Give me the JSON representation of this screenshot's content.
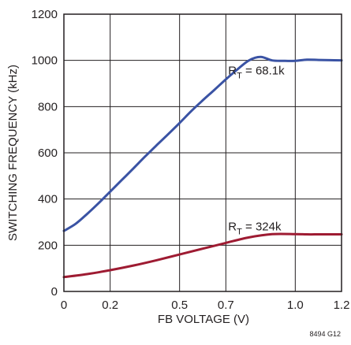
{
  "chart_data": {
    "type": "line",
    "title": "",
    "xlabel": "FB VOLTAGE (V)",
    "ylabel": "SWITCHING FREQUENCY (kHz)",
    "xlim": [
      0,
      1.2
    ],
    "ylim": [
      0,
      1200
    ],
    "x_ticks": [
      0,
      0.2,
      0.5,
      0.7,
      1.0,
      1.2
    ],
    "x_tick_labels": [
      "0",
      "0.2",
      "0.5",
      "0.7",
      "1.0",
      "1.2"
    ],
    "y_ticks": [
      0,
      200,
      400,
      600,
      800,
      1000,
      1200
    ],
    "y_tick_labels": [
      "0",
      "200",
      "400",
      "600",
      "800",
      "1000",
      "1200"
    ],
    "grid": true,
    "legend": "none",
    "series": [
      {
        "color": "#3a53a4",
        "x": [
          0,
          0.05,
          0.1,
          0.15,
          0.2,
          0.25,
          0.3,
          0.35,
          0.4,
          0.45,
          0.5,
          0.55,
          0.6,
          0.65,
          0.7,
          0.75,
          0.8,
          0.85,
          0.9,
          0.95,
          1.0,
          1.05,
          1.1,
          1.15,
          1.2
        ],
        "y": [
          262,
          292,
          335,
          382,
          432,
          482,
          532,
          583,
          632,
          680,
          729,
          780,
          827,
          872,
          918,
          961,
          1000,
          1015,
          1000,
          998,
          998,
          1003,
          1002,
          1001,
          1000
        ]
      },
      {
        "color": "#9e1b32",
        "x": [
          0,
          0.1,
          0.2,
          0.3,
          0.4,
          0.5,
          0.6,
          0.7,
          0.8,
          0.9,
          1.0,
          1.05,
          1.1,
          1.15,
          1.2
        ],
        "y": [
          62,
          75,
          92,
          112,
          135,
          160,
          185,
          210,
          234,
          248,
          248,
          247,
          247,
          247,
          247
        ]
      }
    ],
    "annotations": [
      {
        "main": "R",
        "sub": "T",
        "rest": " = 68.1k",
        "x": 0.71,
        "y": 940
      },
      {
        "main": "R",
        "sub": "T",
        "rest": " = 324k",
        "x": 0.71,
        "y": 265
      }
    ],
    "figure_id": "8494 G12"
  }
}
